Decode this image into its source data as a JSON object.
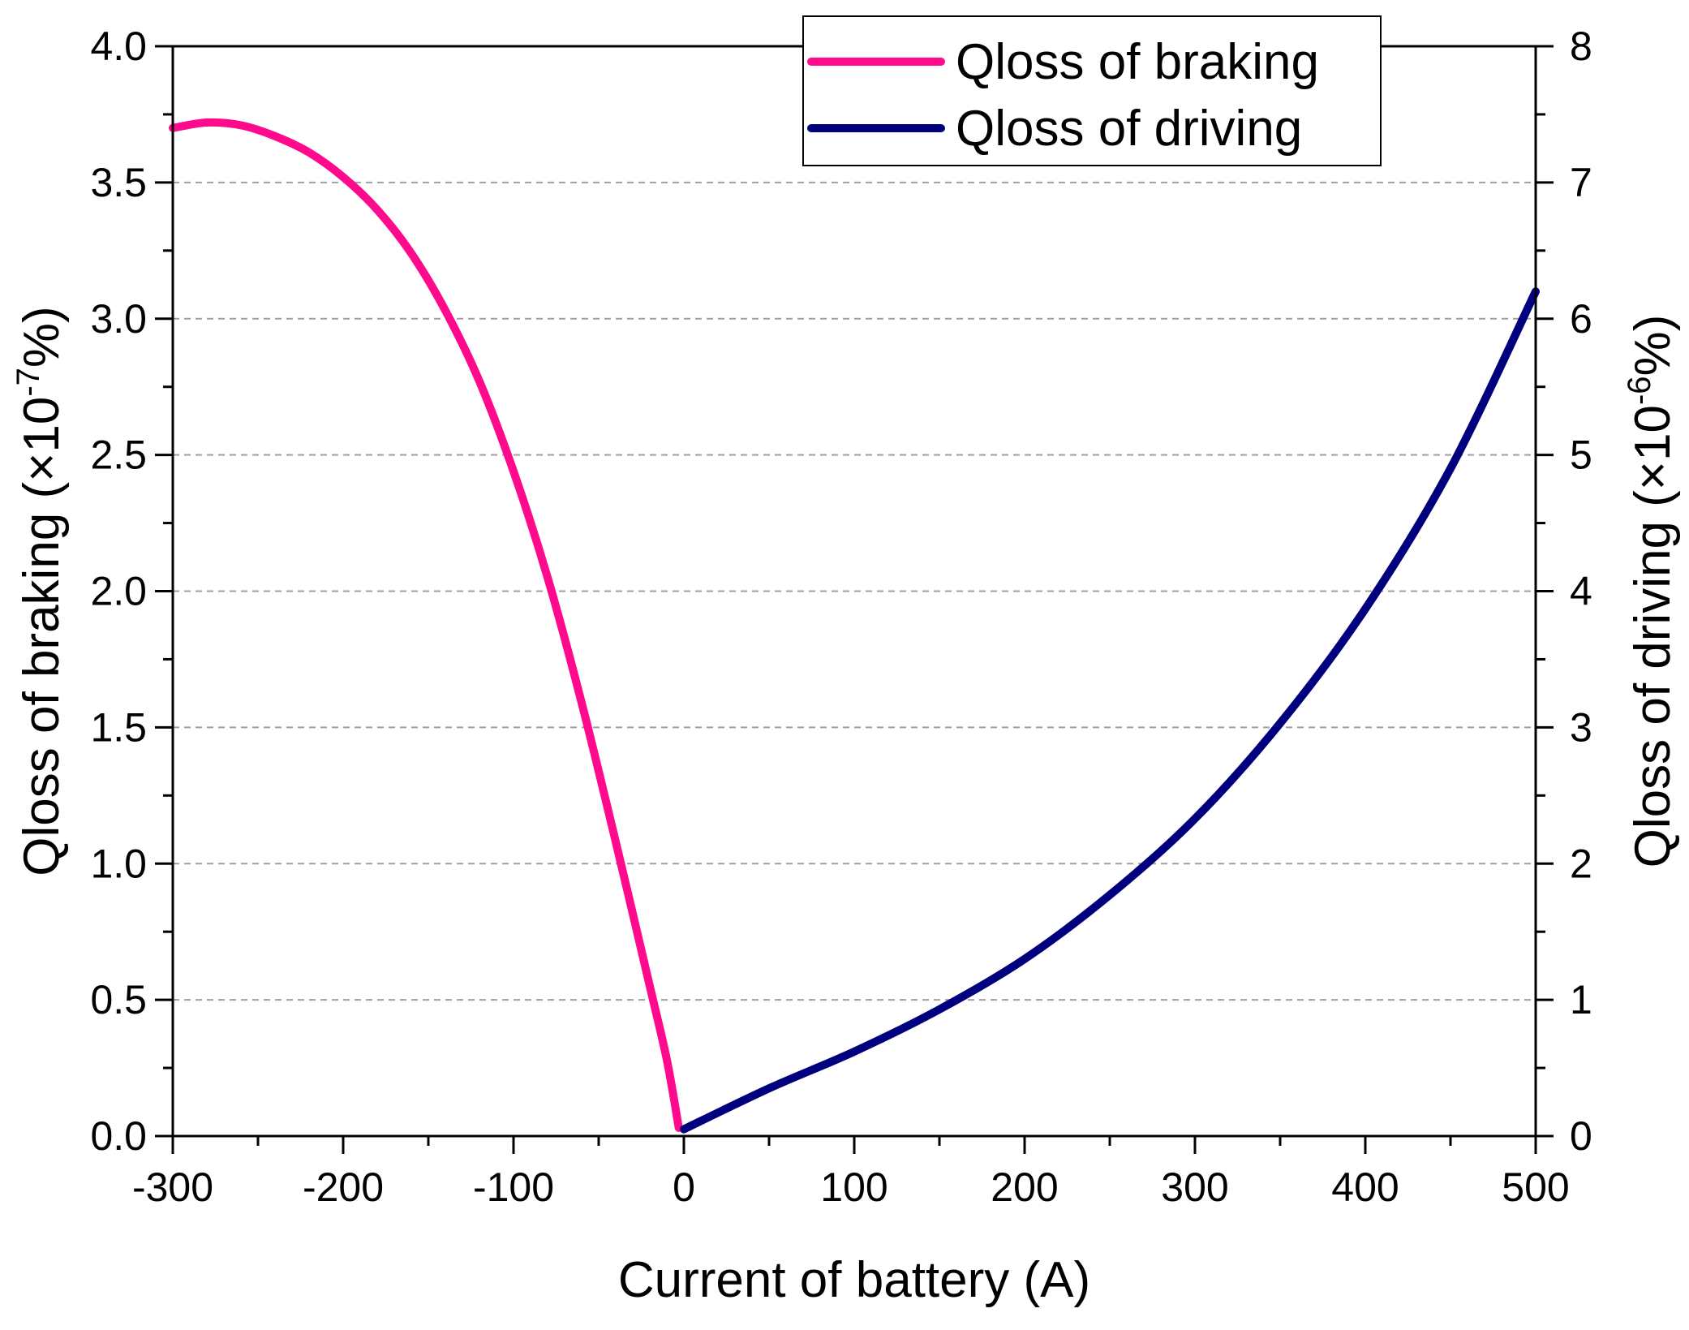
{
  "chart_data": {
    "type": "line",
    "title": "",
    "xlabel": "Current of battery (A)",
    "ylabel_left": {
      "text": "Qloss of braking (×10",
      "sup": "-7",
      "suffix": "%)"
    },
    "ylabel_right": {
      "text": "Qloss of driving (×10",
      "sup": "-6",
      "suffix": "%)"
    },
    "xlim": [
      -300,
      500
    ],
    "ylim_left": [
      0,
      4.0
    ],
    "ylim_right": [
      0,
      8
    ],
    "x_ticks": [
      -300,
      -200,
      -100,
      0,
      100,
      200,
      300,
      400,
      500
    ],
    "x_tick_labels": [
      "-300",
      "-200",
      "-100",
      "0",
      "100",
      "200",
      "300",
      "400",
      "500"
    ],
    "y_left_ticks": [
      0,
      0.5,
      1.0,
      1.5,
      2.0,
      2.5,
      3.0,
      3.5,
      4.0
    ],
    "y_left_tick_labels": [
      "0.0",
      "0.5",
      "1.0",
      "1.5",
      "2.0",
      "2.5",
      "3.0",
      "3.5",
      "4.0"
    ],
    "y_right_ticks": [
      0,
      1,
      2,
      3,
      4,
      5,
      6,
      7,
      8
    ],
    "y_right_tick_labels": [
      "0",
      "1",
      "2",
      "3",
      "4",
      "5",
      "6",
      "7",
      "8"
    ],
    "grid": "horizontal-dashed",
    "legend_position": "top-right",
    "series": [
      {
        "name": "Qloss of braking",
        "axis": "left",
        "color": "#ff0a8c",
        "x": [
          -300,
          -280,
          -260,
          -240,
          -220,
          -200,
          -180,
          -160,
          -140,
          -120,
          -100,
          -80,
          -60,
          -40,
          -20,
          -10,
          -3
        ],
        "y": [
          3.7,
          3.72,
          3.71,
          3.67,
          3.61,
          3.52,
          3.4,
          3.24,
          3.03,
          2.77,
          2.44,
          2.05,
          1.59,
          1.08,
          0.55,
          0.28,
          0.03
        ]
      },
      {
        "name": "Qloss of driving",
        "axis": "right",
        "color": "#00007f",
        "x": [
          0,
          50,
          100,
          150,
          200,
          250,
          300,
          350,
          400,
          450,
          500
        ],
        "y": [
          0.05,
          0.35,
          0.62,
          0.93,
          1.3,
          1.77,
          2.33,
          3.03,
          3.87,
          4.9,
          6.2
        ]
      }
    ]
  }
}
